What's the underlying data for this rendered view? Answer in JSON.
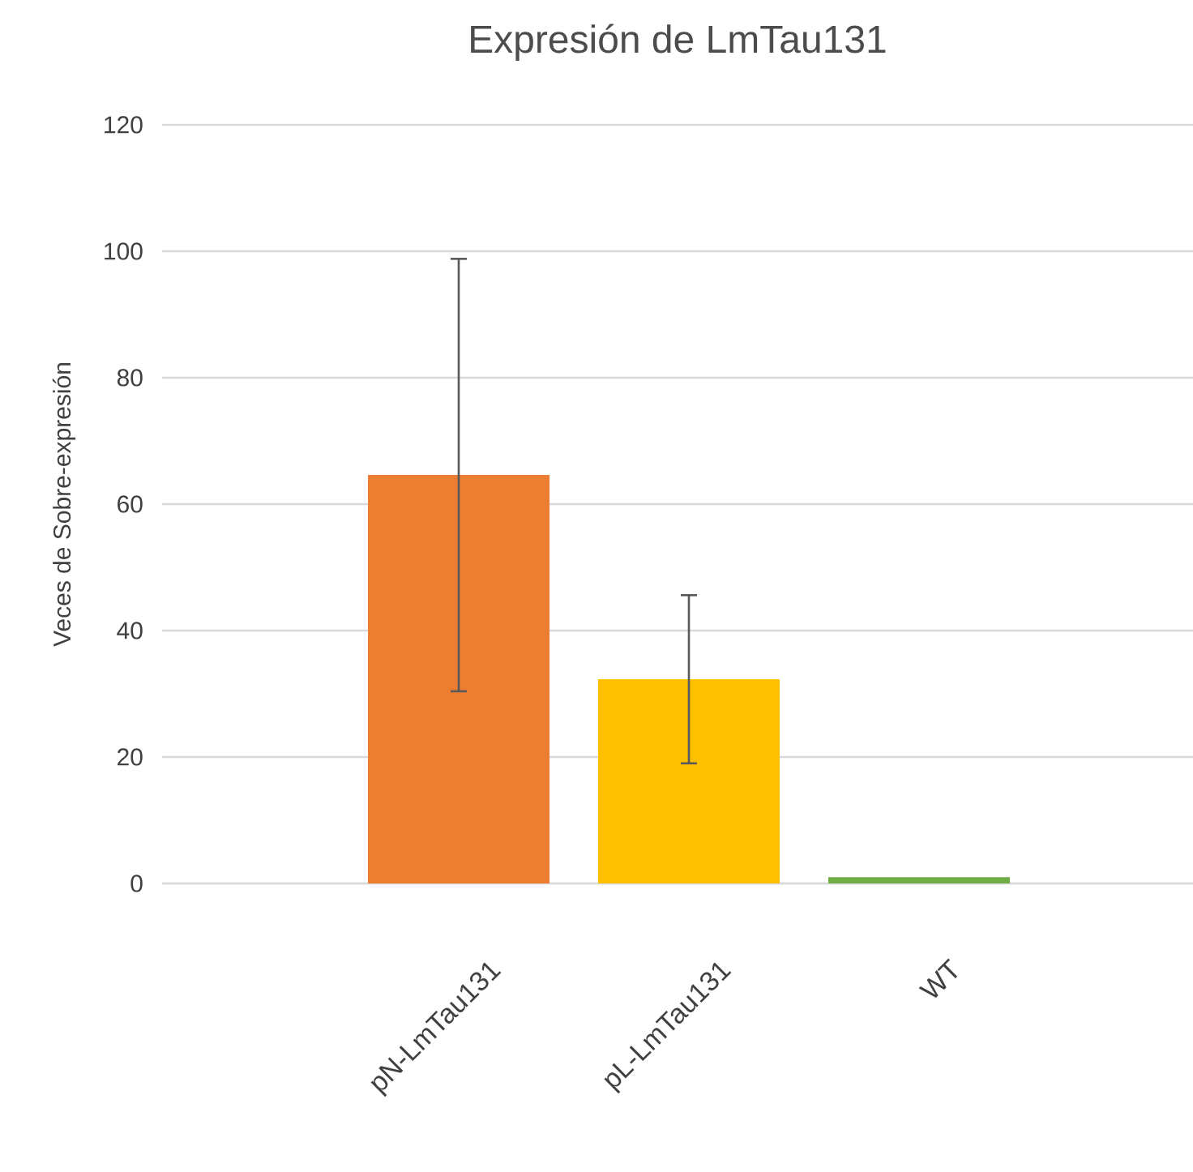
{
  "chart_data": {
    "type": "bar",
    "title": "Expresión de LmTau131",
    "ylabel": "Veces de Sobre-expresión",
    "categories": [
      "pN-LmTau131",
      "pL-LmTau131",
      "WT"
    ],
    "values": [
      64.6,
      32.3,
      1.0
    ],
    "colors": [
      "#ed7d31",
      "#ffc000",
      "#70ad47"
    ],
    "errors": [
      34.2,
      13.3,
      null
    ],
    "ylim": [
      0,
      120
    ],
    "yticks": [
      0,
      20,
      40,
      60,
      80,
      100,
      120
    ],
    "grid": "y"
  }
}
